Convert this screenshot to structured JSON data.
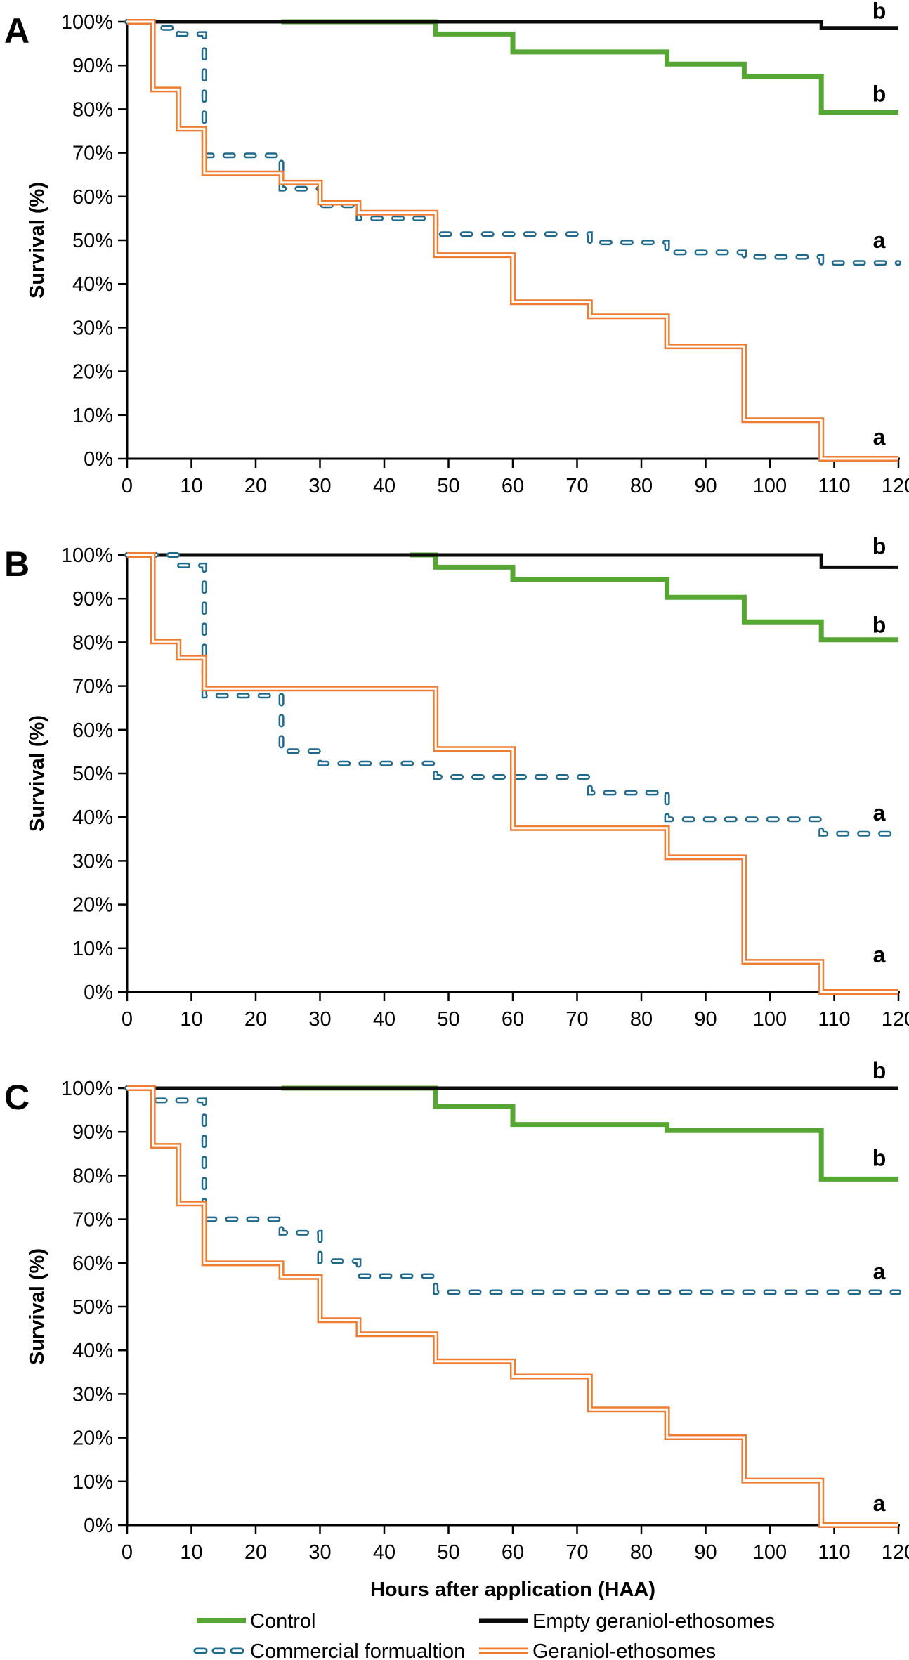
{
  "figure": {
    "panel_letters": [
      "A",
      "B",
      "C"
    ],
    "y_axis_title": "Survival (%)",
    "x_axis_title": "Hours after application (HAA)",
    "x_tick_labels": [
      "0",
      "10",
      "20",
      "30",
      "40",
      "50",
      "60",
      "70",
      "80",
      "90",
      "100",
      "110",
      "120"
    ],
    "y_tick_labels": [
      "0%",
      "10%",
      "20%",
      "30%",
      "40%",
      "50%",
      "60%",
      "70%",
      "80%",
      "90%",
      "100%"
    ]
  },
  "colors": {
    "control": "#55A633",
    "empty": "#0A0A0A",
    "commercial": "#1F698C",
    "geraniol": "#EE7D31",
    "axis": "#000000",
    "dash_core": "#FFFFFF"
  },
  "legend": {
    "items": [
      {
        "key": "control",
        "label": "Control"
      },
      {
        "key": "empty",
        "label": "Empty geraniol-ethosomes"
      },
      {
        "key": "commercial",
        "label": "Commercial formualtion"
      },
      {
        "key": "geraniol",
        "label": "Geraniol-ethosomes"
      }
    ]
  },
  "chart_data": [
    {
      "type": "line",
      "panel": "A",
      "title": "",
      "xlabel": "",
      "ylabel": "Survival (%)",
      "xlim": [
        0,
        120
      ],
      "ylim": [
        0,
        100
      ],
      "x_ticks": [
        0,
        10,
        20,
        30,
        40,
        50,
        60,
        70,
        80,
        90,
        100,
        110,
        120
      ],
      "y_ticks": [
        0,
        10,
        20,
        30,
        40,
        50,
        60,
        70,
        80,
        90,
        100
      ],
      "grid": "off",
      "series": [
        {
          "key": "control",
          "name": "Control",
          "style": "solid-green",
          "steps": [
            [
              24,
              100
            ],
            [
              48,
              97.2
            ],
            [
              60,
              93.1
            ],
            [
              84,
              90.3
            ],
            [
              96,
              87.5
            ],
            [
              108,
              79.2
            ],
            [
              120,
              79.2
            ]
          ]
        },
        {
          "key": "empty",
          "name": "Empty geraniol-ethosomes",
          "style": "solid-black",
          "steps": [
            [
              0,
              100
            ],
            [
              108,
              98.6
            ],
            [
              120,
              98.6
            ]
          ]
        },
        {
          "key": "commercial",
          "name": "Commercial formualtion",
          "style": "dashed-blue",
          "steps": [
            [
              0,
              100
            ],
            [
              4,
              98.6
            ],
            [
              8,
              97.2
            ],
            [
              12,
              69.4
            ],
            [
              24,
              61.8
            ],
            [
              30,
              58
            ],
            [
              36,
              55
            ],
            [
              48,
              51.4
            ],
            [
              72,
              49.5
            ],
            [
              84,
              47.2
            ],
            [
              96,
              46.2
            ],
            [
              108,
              44.8
            ],
            [
              120,
              44.8
            ]
          ]
        },
        {
          "key": "geraniol",
          "name": "Geraniol-ethosomes",
          "style": "double-orange",
          "steps": [
            [
              0,
              100
            ],
            [
              4,
              84.5
            ],
            [
              8,
              75.5
            ],
            [
              12,
              65.3
            ],
            [
              24,
              63.2
            ],
            [
              30,
              58.6
            ],
            [
              36,
              56.3
            ],
            [
              48,
              46.6
            ],
            [
              60,
              35.8
            ],
            [
              72,
              32.6
            ],
            [
              84,
              25.7
            ],
            [
              96,
              8.8
            ],
            [
              108,
              0
            ],
            [
              120,
              0
            ]
          ]
        }
      ],
      "sig_labels": [
        {
          "text": "b",
          "x": 117,
          "y": 102.5
        },
        {
          "text": "b",
          "x": 117,
          "y": 83.5
        },
        {
          "text": "a",
          "x": 117,
          "y": 50
        },
        {
          "text": "a",
          "x": 117,
          "y": 5
        }
      ]
    },
    {
      "type": "line",
      "panel": "B",
      "title": "",
      "xlabel": "",
      "ylabel": "Survival (%)",
      "xlim": [
        0,
        120
      ],
      "ylim": [
        0,
        100
      ],
      "x_ticks": [
        0,
        10,
        20,
        30,
        40,
        50,
        60,
        70,
        80,
        90,
        100,
        110,
        120
      ],
      "y_ticks": [
        0,
        10,
        20,
        30,
        40,
        50,
        60,
        70,
        80,
        90,
        100
      ],
      "grid": "off",
      "series": [
        {
          "key": "control",
          "name": "Control",
          "style": "solid-green",
          "steps": [
            [
              44,
              100
            ],
            [
              48,
              97.2
            ],
            [
              60,
              94.4
            ],
            [
              84,
              90.3
            ],
            [
              96,
              84.7
            ],
            [
              108,
              80.6
            ],
            [
              120,
              80.6
            ]
          ]
        },
        {
          "key": "empty",
          "name": "Empty geraniol-ethosomes",
          "style": "solid-black",
          "steps": [
            [
              0,
              100
            ],
            [
              108,
              97.2
            ],
            [
              120,
              97.2
            ]
          ]
        },
        {
          "key": "commercial",
          "name": "Commercial formualtion",
          "style": "dashed-blue",
          "steps": [
            [
              0,
              100
            ],
            [
              8,
              97.6
            ],
            [
              12,
              67.8
            ],
            [
              24,
              55.1
            ],
            [
              30,
              52.3
            ],
            [
              48,
              49.2
            ],
            [
              72,
              45.6
            ],
            [
              84,
              39.5
            ],
            [
              108,
              36.2
            ],
            [
              120,
              36.2
            ]
          ]
        },
        {
          "key": "geraniol",
          "name": "Geraniol-ethosomes",
          "style": "double-orange",
          "steps": [
            [
              0,
              100
            ],
            [
              4,
              80.2
            ],
            [
              8,
              76.5
            ],
            [
              12,
              69.4
            ],
            [
              48,
              55.6
            ],
            [
              60,
              37.5
            ],
            [
              84,
              30.8
            ],
            [
              96,
              6.9
            ],
            [
              108,
              0
            ],
            [
              120,
              0
            ]
          ]
        }
      ],
      "sig_labels": [
        {
          "text": "b",
          "x": 117,
          "y": 102
        },
        {
          "text": "b",
          "x": 117,
          "y": 84
        },
        {
          "text": "a",
          "x": 117,
          "y": 41
        },
        {
          "text": "a",
          "x": 117,
          "y": 8.5
        }
      ]
    },
    {
      "type": "line",
      "panel": "C",
      "title": "",
      "xlabel": "Hours after application (HAA)",
      "ylabel": "Survival (%)",
      "xlim": [
        0,
        120
      ],
      "ylim": [
        0,
        100
      ],
      "x_ticks": [
        0,
        10,
        20,
        30,
        40,
        50,
        60,
        70,
        80,
        90,
        100,
        110,
        120
      ],
      "y_ticks": [
        0,
        10,
        20,
        30,
        40,
        50,
        60,
        70,
        80,
        90,
        100
      ],
      "grid": "off",
      "series": [
        {
          "key": "control",
          "name": "Control",
          "style": "solid-green",
          "steps": [
            [
              24,
              100
            ],
            [
              48,
              95.8
            ],
            [
              60,
              91.7
            ],
            [
              84,
              90.3
            ],
            [
              108,
              79.2
            ],
            [
              120,
              79.2
            ]
          ]
        },
        {
          "key": "empty",
          "name": "Empty geraniol-ethosomes",
          "style": "solid-black",
          "steps": [
            [
              0,
              100
            ],
            [
              120,
              100
            ]
          ]
        },
        {
          "key": "commercial",
          "name": "Commercial formualtion",
          "style": "dashed-blue",
          "steps": [
            [
              0,
              100
            ],
            [
              4,
              97.2
            ],
            [
              12,
              70
            ],
            [
              24,
              66.9
            ],
            [
              30,
              60.4
            ],
            [
              36,
              57
            ],
            [
              48,
              53.3
            ],
            [
              120,
              53.3
            ]
          ]
        },
        {
          "key": "geraniol",
          "name": "Geraniol-ethosomes",
          "style": "double-orange",
          "steps": [
            [
              0,
              100
            ],
            [
              4,
              86.8
            ],
            [
              8,
              73.6
            ],
            [
              12,
              59.9
            ],
            [
              24,
              56.8
            ],
            [
              30,
              46.9
            ],
            [
              36,
              43.7
            ],
            [
              48,
              37.5
            ],
            [
              60,
              34
            ],
            [
              72,
              26.5
            ],
            [
              84,
              20.1
            ],
            [
              96,
              10.2
            ],
            [
              108,
              0
            ],
            [
              120,
              0
            ]
          ]
        }
      ],
      "sig_labels": [
        {
          "text": "b",
          "x": 117,
          "y": 104
        },
        {
          "text": "b",
          "x": 117,
          "y": 84
        },
        {
          "text": "a",
          "x": 117,
          "y": 58
        },
        {
          "text": "a",
          "x": 117,
          "y": 5
        }
      ]
    }
  ],
  "layout_note": "three stacked Kaplan-Meier style survival panels, x axis 0-120 hours, y axis 0-100% survival"
}
